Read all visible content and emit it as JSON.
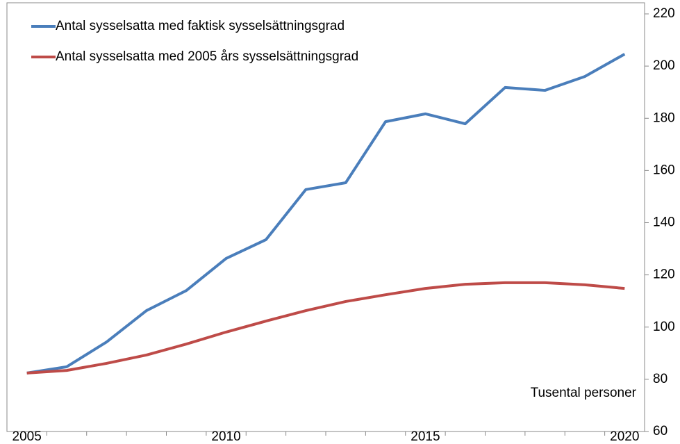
{
  "chart_data": {
    "type": "line",
    "annotation": "Tusental personer",
    "categories": [
      "2005",
      null,
      null,
      null,
      null,
      "2010",
      null,
      null,
      null,
      null,
      "2015",
      null,
      null,
      null,
      null,
      "2020"
    ],
    "series": [
      {
        "name": "Antal sysselsatta med faktisk sysselsättningsgrad",
        "color": "#4a7ebb",
        "values": [
          82.4,
          84.8,
          94.3,
          106.3,
          114,
          126.3,
          133.5,
          152.7,
          155.3,
          178.7,
          181.7,
          177.9,
          191.8,
          190.7,
          196,
          204.6
        ]
      },
      {
        "name": "Antal sysselsatta med 2005 års sysselsättningsgrad",
        "color": "#be4b48",
        "values": [
          82.4,
          83.4,
          86.1,
          89.3,
          93.5,
          98.1,
          102.3,
          106.3,
          109.8,
          112.4,
          114.8,
          116.4,
          117,
          117,
          116.2,
          114.8
        ]
      }
    ],
    "ylim": [
      60,
      220
    ],
    "yticks": [
      60,
      80,
      100,
      120,
      140,
      160,
      180,
      200,
      220
    ],
    "y_axis_side": "right",
    "legend": "top-left",
    "grid": false
  }
}
